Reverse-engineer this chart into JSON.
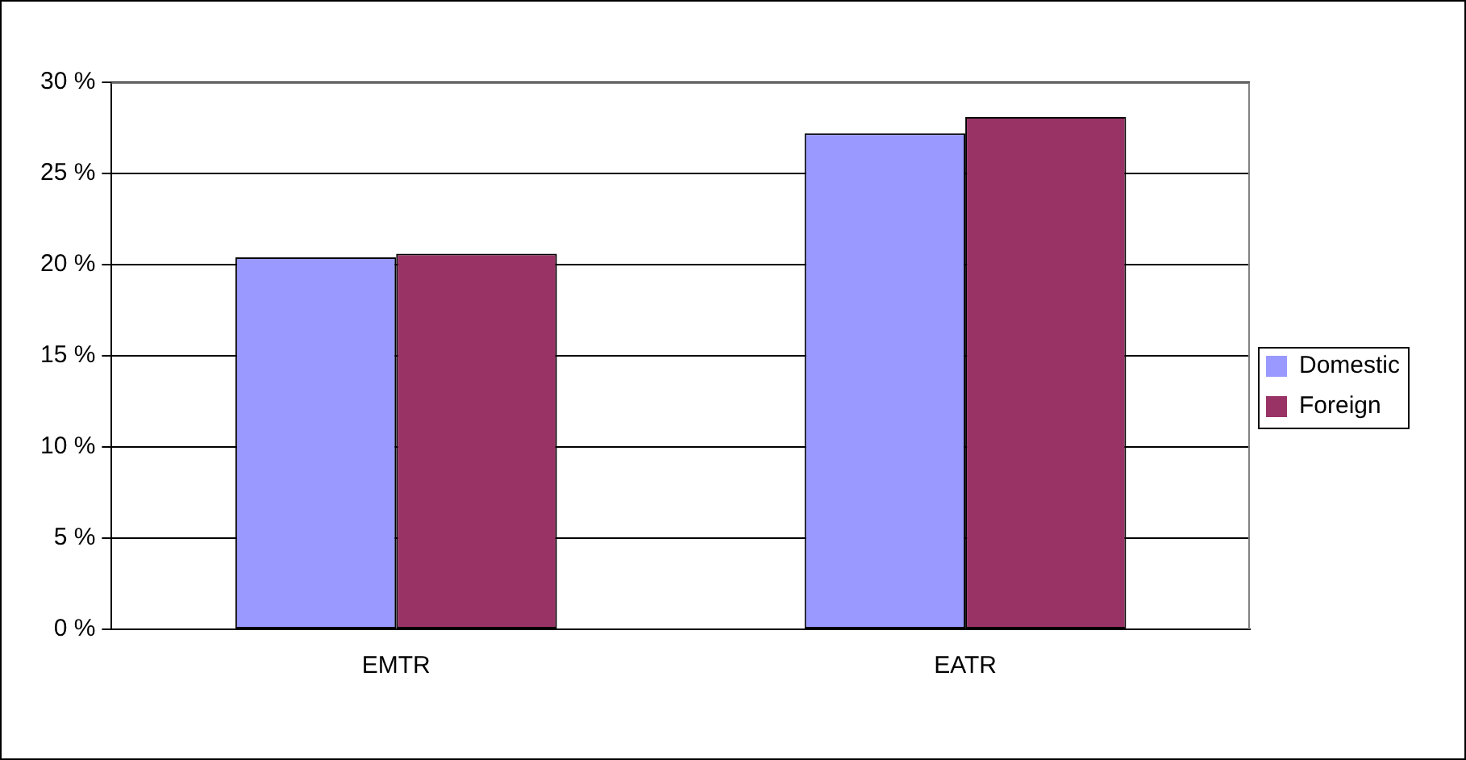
{
  "chart_data": {
    "type": "bar",
    "categories": [
      "EMTR",
      "EATR"
    ],
    "series": [
      {
        "name": "Domestic",
        "color": "#9999ff",
        "values": [
          20.4,
          27.2
        ]
      },
      {
        "name": "Foreign",
        "color": "#993366",
        "values": [
          20.6,
          28.1
        ]
      }
    ],
    "ylim": [
      0,
      30
    ],
    "yticks": [
      {
        "value": 0,
        "label": "0 %"
      },
      {
        "value": 5,
        "label": "5 %"
      },
      {
        "value": 10,
        "label": "10 %"
      },
      {
        "value": 15,
        "label": "15 %"
      },
      {
        "value": 20,
        "label": "20 %"
      },
      {
        "value": 25,
        "label": "25 %"
      },
      {
        "value": 30,
        "label": "30 %"
      }
    ],
    "grid": "y",
    "legend": "right"
  }
}
